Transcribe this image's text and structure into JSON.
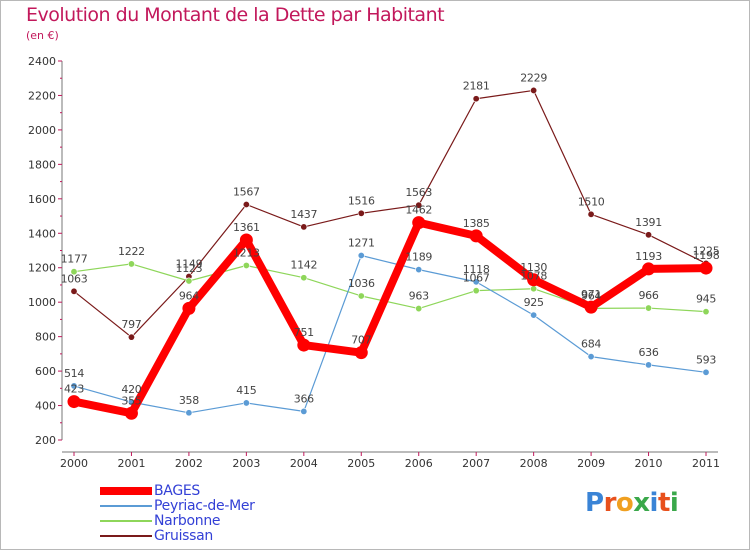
{
  "title": "Evolution du Montant de la Dette par Habitant",
  "unit": "(en €)",
  "logo": {
    "text": "Proxiti",
    "colors": [
      "#3a84d6",
      "#e8501c",
      "#f0a020",
      "#3aa84a",
      "#3a84d6",
      "#e8501c",
      "#3aa84a"
    ]
  },
  "chart_data": {
    "type": "line",
    "x": [
      "2000",
      "2001",
      "2002",
      "2003",
      "2004",
      "2005",
      "2006",
      "2007",
      "2008",
      "2009",
      "2010",
      "2011"
    ],
    "ylim": [
      200,
      2400
    ],
    "yticks": [
      200,
      400,
      600,
      800,
      1000,
      1200,
      1400,
      1600,
      1800,
      2000,
      2200,
      2400
    ],
    "grid": false,
    "legend_position": "bottom-left",
    "series": [
      {
        "name": "Gruissan",
        "color": "#7a1a1a",
        "width": 1.2,
        "values": [
          1063,
          797,
          1149,
          1567,
          1437,
          1516,
          1563,
          2181,
          2229,
          1510,
          1391,
          1225
        ]
      },
      {
        "name": "Narbonne",
        "color": "#8ed65a",
        "width": 1.2,
        "values": [
          1177,
          1222,
          1123,
          1213,
          1142,
          1036,
          963,
          1067,
          1078,
          964,
          966,
          945
        ]
      },
      {
        "name": "Peyriac-de-Mer",
        "color": "#5b9bd5",
        "width": 1.2,
        "values": [
          514,
          420,
          358,
          415,
          366,
          1271,
          1189,
          1118,
          925,
          684,
          636,
          593
        ]
      },
      {
        "name": "BAGES",
        "color": "#ff0000",
        "width": 8,
        "values": [
          423,
          355,
          964,
          1361,
          751,
          707,
          1462,
          1385,
          1130,
          971,
          1193,
          1198
        ]
      }
    ]
  }
}
